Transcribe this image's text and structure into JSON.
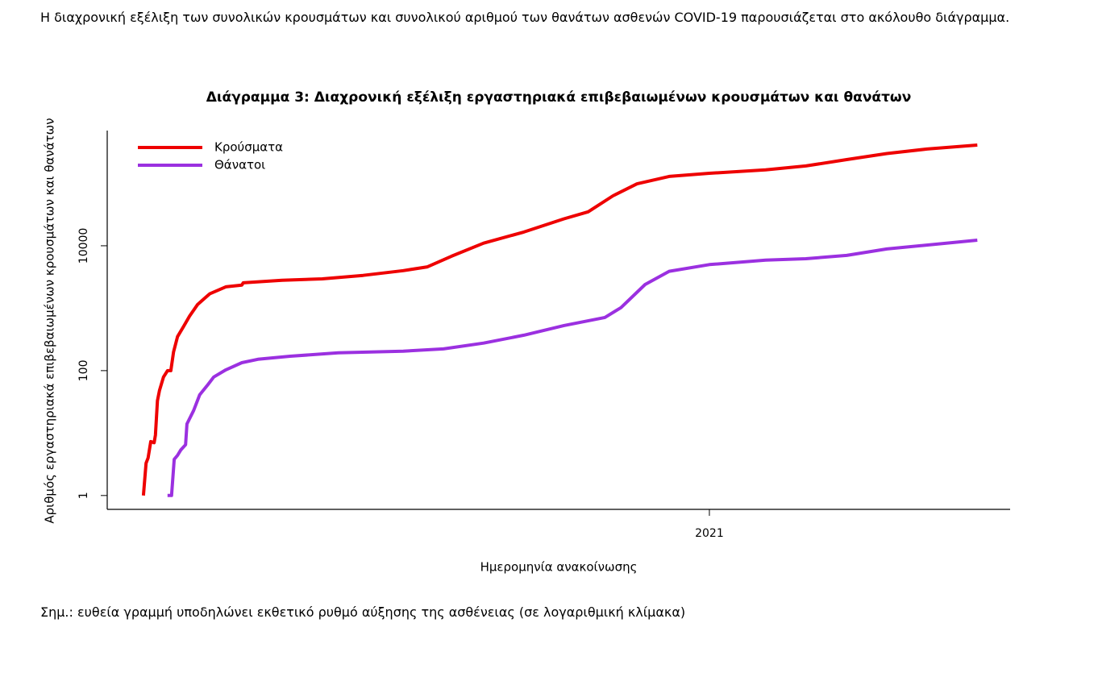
{
  "text": {
    "intro": "Η διαχρονική εξέλιξη των συνολικών κρουσμάτων και συνολικού αριθμού των θανάτων ασθενών COVID-19 παρουσιάζεται στο ακόλουθο διάγραμμα.",
    "note": "Σημ.: ευθεία γραμμή υποδηλώνει εκθετικό ρυθμό αύξησης της ασθένειας (σε λογαριθμική κλίμακα)"
  },
  "chart_data": {
    "type": "line",
    "title": "Διάγραμμα 3: Διαχρονική εξέλιξη εργαστηριακά επιβεβαιωμένων κρουσμάτων και θανάτων",
    "x_label": "Ημερομηνία ανακοίνωσης",
    "y_label": "Αριθμός εργαστηριακά επιβεβαιωμένων κρουσμάτων και θανάτων",
    "xlim": [
      2020.101,
      2021.449
    ],
    "xticks": [
      2021
    ],
    "ylim": [
      0.6,
      700000
    ],
    "yticks": [
      1,
      100,
      10000
    ],
    "y_log": true,
    "legend": "topleft",
    "series": [
      {
        "name": "Κρούσματα",
        "color": "#ee0000",
        "x": [
          2020.155,
          2020.159,
          2020.162,
          2020.166,
          2020.171,
          2020.173,
          2020.176,
          2020.179,
          2020.185,
          2020.191,
          2020.196,
          2020.2,
          2020.206,
          2020.215,
          2020.224,
          2020.236,
          2020.254,
          2020.278,
          2020.302,
          2020.304,
          2020.362,
          2020.422,
          2020.483,
          2020.543,
          2020.579,
          2020.615,
          2020.663,
          2020.723,
          2020.783,
          2020.819,
          2020.856,
          2020.892,
          2020.94,
          2021.0,
          2021.084,
          2021.144,
          2021.205,
          2021.265,
          2021.325,
          2021.4
        ],
        "values": [
          1,
          3.3,
          4,
          7.3,
          7,
          9.3,
          33,
          48,
          79,
          100,
          100,
          200,
          350,
          510,
          750,
          1150,
          1700,
          2200,
          2350,
          2550,
          2800,
          2950,
          3350,
          4000,
          4600,
          6800,
          11000,
          16600,
          27000,
          35000,
          63000,
          98000,
          129000,
          145000,
          164000,
          190000,
          240000,
          300000,
          354000,
          410000
        ]
      },
      {
        "name": "Θάνατοι",
        "color": "#9b30e0",
        "x": [
          2020.191,
          2020.197,
          2020.201,
          2020.206,
          2020.211,
          2020.218,
          2020.22,
          2020.23,
          2020.239,
          2020.251,
          2020.26,
          2020.278,
          2020.302,
          2020.326,
          2020.374,
          2020.446,
          2020.543,
          2020.603,
          2020.663,
          2020.723,
          2020.783,
          2020.844,
          2020.868,
          2020.904,
          2020.94,
          2021.0,
          2021.084,
          2021.144,
          2021.205,
          2021.265,
          2021.4
        ],
        "values": [
          1,
          1,
          3.8,
          4.4,
          5.4,
          6.5,
          14,
          23,
          41,
          59,
          79,
          103,
          134,
          152,
          170,
          193,
          205,
          223,
          276,
          370,
          528,
          710,
          1020,
          2400,
          3900,
          5000,
          5900,
          6200,
          7000,
          8900,
          12300
        ]
      }
    ]
  }
}
